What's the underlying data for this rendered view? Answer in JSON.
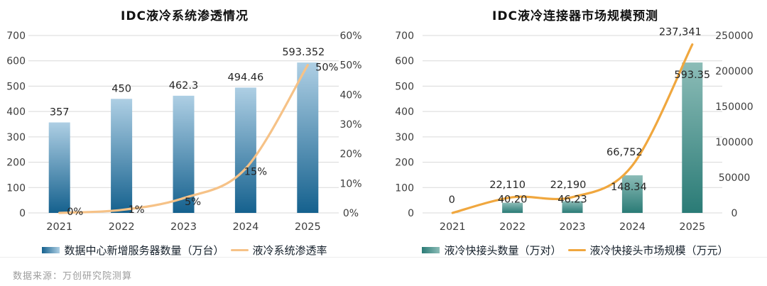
{
  "page": {
    "source_note": "数据来源：万创研究院测算"
  },
  "charts": [
    {
      "title": "IDC液冷系统渗透情况",
      "legend": [
        {
          "icon": "bar-swatch",
          "label": "数据中心新增服务器数量（万台）"
        },
        {
          "icon": "line-swatch",
          "label": "液冷系统渗透率"
        }
      ],
      "chart_data": {
        "type": "bar+line combo",
        "categories": [
          "2021",
          "2022",
          "2023",
          "2024",
          "2025"
        ],
        "series": [
          {
            "name": "数据中心新增服务器数量（万台）",
            "type": "bar",
            "axis": "left",
            "values": [
              357,
              450,
              462.3,
              494.46,
              593.352
            ],
            "labels": [
              "357",
              "450",
              "462.3",
              "494.46",
              "593.352"
            ]
          },
          {
            "name": "液冷系统渗透率",
            "type": "line",
            "axis": "right",
            "values": [
              0,
              1,
              5,
              15,
              50
            ],
            "labels": [
              "0%",
              "1%",
              "5%",
              "15%",
              "50%"
            ]
          }
        ],
        "title": "IDC液冷系统渗透情况",
        "left_axis": {
          "min": 0,
          "max": 700,
          "ticks": [
            "0",
            "100",
            "200",
            "300",
            "400",
            "500",
            "600",
            "700"
          ]
        },
        "right_axis": {
          "min": 0,
          "max": 60,
          "ticks": [
            "0%",
            "10%",
            "20%",
            "30%",
            "40%",
            "50%",
            "60%"
          ]
        },
        "grid": true,
        "legend_position": "bottom",
        "colors": {
          "bar_top": "#aecfe4",
          "bar_bottom": "#15618e",
          "line": "#f6c287"
        }
      }
    },
    {
      "title": "IDC液冷连接器市场规模预测",
      "legend": [
        {
          "icon": "bar-swatch",
          "label": "液冷快接头数量（万对）"
        },
        {
          "icon": "line-swatch",
          "label": "液冷快接头市场规模（万元）"
        }
      ],
      "chart_data": {
        "type": "bar+line combo",
        "categories": [
          "2021",
          "2022",
          "2023",
          "2024",
          "2025"
        ],
        "series": [
          {
            "name": "液冷快接头数量（万对）",
            "type": "bar",
            "axis": "left",
            "values": [
              0,
              40.2,
              46.23,
              148.34,
              593.35
            ],
            "labels": [
              "",
              "40.20",
              "46.23",
              "148.34",
              "593.35"
            ]
          },
          {
            "name": "液冷快接头市场规模（万元）",
            "type": "line",
            "axis": "right",
            "values": [
              0,
              22110,
              22190,
              66752,
              237341
            ],
            "labels": [
              "0",
              "22,110",
              "22,190",
              "66,752",
              "237,341"
            ]
          }
        ],
        "title": "IDC液冷连接器市场规模预测",
        "left_axis": {
          "min": 0,
          "max": 700,
          "ticks": [
            "0",
            "100",
            "200",
            "300",
            "400",
            "500",
            "600",
            "700"
          ]
        },
        "right_axis": {
          "min": 0,
          "max": 250000,
          "ticks": [
            "0",
            "50000",
            "100000",
            "150000",
            "200000",
            "250000"
          ]
        },
        "grid": true,
        "legend_position": "bottom",
        "colors": {
          "bar_top": "#8cbcb7",
          "bar_bottom": "#2a7b76",
          "line": "#f0a73e"
        }
      }
    }
  ]
}
